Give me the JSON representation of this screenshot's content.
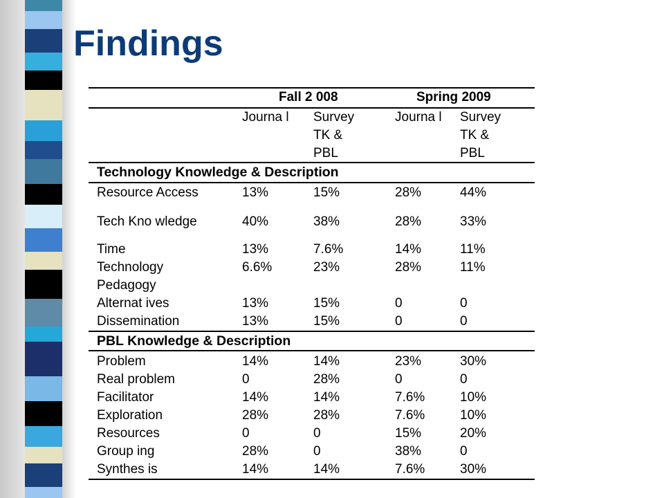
{
  "slide": {
    "title": "Findings",
    "colors": {
      "title": "#0d3b78",
      "strip": [
        "#3f87a6",
        "#9bc6f0",
        "#1b3f78",
        "#36aede",
        "#000000",
        "#e6e2c0",
        "#29a0d8",
        "#1f4d8e",
        "#3f7a9e",
        "#000000",
        "#d8eef8",
        "#3f7fcf",
        "#e6e2c0",
        "#000000",
        "#5f8aa8",
        "#24a8d8",
        "#1c2f6a",
        "#7ab8e8",
        "#000000",
        "#3aa8de",
        "#e6e2c0",
        "#1b3f78",
        "#9bc6f0",
        "#000000"
      ]
    }
  },
  "table": {
    "periods": [
      "Fall 2 008",
      "Spring 2009"
    ],
    "col_headers": [
      [
        "Journa l"
      ],
      [
        "Survey",
        "TK &",
        "PBL"
      ],
      [
        "Journa l"
      ],
      [
        "Survey",
        "TK &",
        "PBL"
      ]
    ],
    "sections": [
      {
        "title": "Technology Knowledge & Description",
        "rows": [
          {
            "label": "Resource Access",
            "values": [
              "13%",
              "15%",
              "28%",
              "44%"
            ]
          },
          {
            "label": "Tech Kno wledge",
            "values": [
              "40%",
              "38%",
              "28%",
              "33%"
            ]
          },
          {
            "label": "Time",
            "values": [
              "13%",
              "7.6%",
              "14%",
              "11%"
            ]
          },
          {
            "label": "Technology",
            "values": [
              "6.6%",
              "23%",
              "28%",
              "11%"
            ]
          },
          {
            "label": "Pedagogy",
            "values": [
              "",
              "",
              "",
              ""
            ]
          },
          {
            "label": "Alternat ives",
            "values": [
              "13%",
              "15%",
              "0",
              "0"
            ]
          },
          {
            "label": "Dissemination",
            "values": [
              "13%",
              "15%",
              "0",
              "0"
            ]
          }
        ]
      },
      {
        "title": "PBL Knowledge & Description",
        "rows": [
          {
            "label": "Problem",
            "values": [
              "14%",
              "14%",
              "23%",
              "30%"
            ]
          },
          {
            "label": "Real problem",
            "values": [
              "0",
              "28%",
              "0",
              "0"
            ]
          },
          {
            "label": "Facilitator",
            "values": [
              "14%",
              "14%",
              "7.6%",
              "10%"
            ]
          },
          {
            "label": "Exploration",
            "values": [
              "28%",
              "28%",
              "7.6%",
              "10%"
            ]
          },
          {
            "label": "Resources",
            "values": [
              "0",
              "0",
              "15%",
              "20%"
            ]
          },
          {
            "label": "Group ing",
            "values": [
              "28%",
              "0",
              "38%",
              "0"
            ]
          },
          {
            "label": "Synthes is",
            "values": [
              "14%",
              "14%",
              "7.6%",
              "30%"
            ]
          }
        ]
      }
    ]
  }
}
